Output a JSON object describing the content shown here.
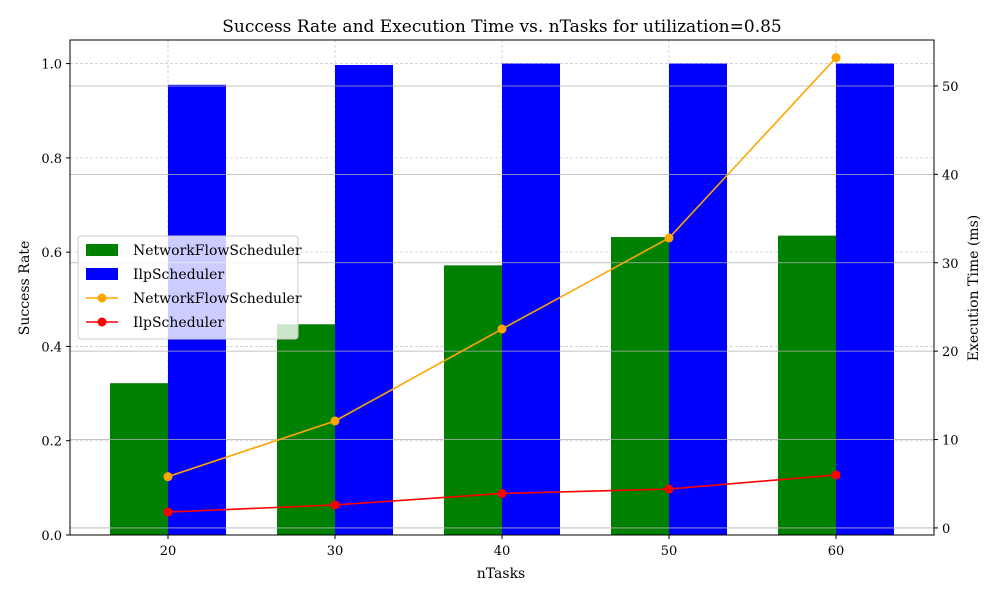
{
  "chart_data": {
    "type": "bar",
    "title": "Success Rate and Execution Time vs. nTasks for utilization=0.85",
    "xlabel": "nTasks",
    "ylabel": "Success Rate",
    "y2label": "Execution Time (ms)",
    "categories": [
      "20",
      "30",
      "40",
      "50",
      "60"
    ],
    "ylim": [
      0,
      1.05
    ],
    "y2lim": [
      -0.8,
      55.2
    ],
    "yticks": [
      "0.0",
      "0.2",
      "0.4",
      "0.6",
      "0.8",
      "1.0"
    ],
    "y2ticks": [
      "0",
      "10",
      "20",
      "30",
      "40",
      "50"
    ],
    "grid": true,
    "legend_position": "center-left",
    "bar_series": [
      {
        "name": "NetworkFlowScheduler",
        "values": [
          0.322,
          0.447,
          0.572,
          0.632,
          0.635
        ],
        "color": "#008000"
      },
      {
        "name": "IlpScheduler",
        "values": [
          0.955,
          0.997,
          1.0,
          1.0,
          1.0
        ],
        "color": "#0000ff"
      }
    ],
    "line_series": [
      {
        "name": "NetworkFlowScheduler",
        "values": [
          5.8,
          12.1,
          22.5,
          32.8,
          53.2
        ],
        "color": "#ffa500"
      },
      {
        "name": "IlpScheduler",
        "values": [
          1.8,
          2.6,
          3.9,
          4.4,
          6.0
        ],
        "color": "#ff0000"
      }
    ]
  }
}
